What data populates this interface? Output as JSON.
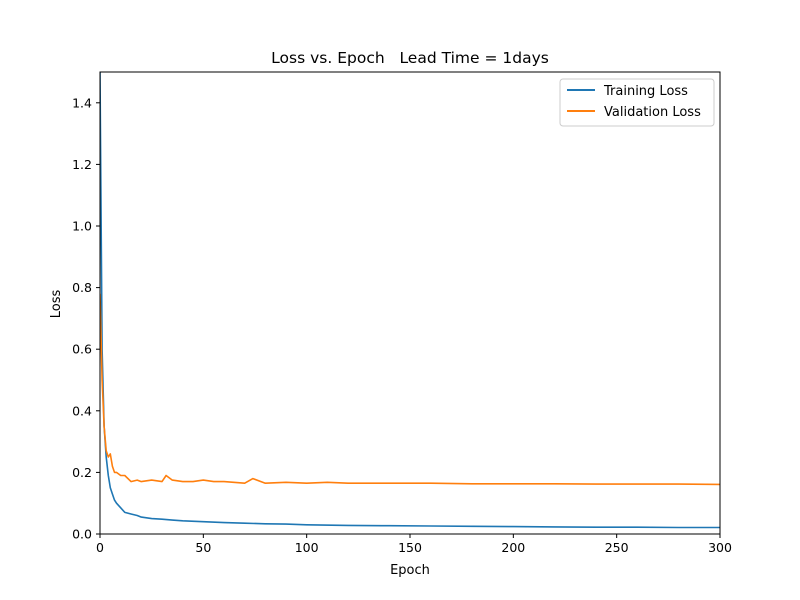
{
  "chart_data": {
    "type": "line",
    "title": "Loss vs. Epoch   Lead Time = 1days",
    "xlabel": "Epoch",
    "ylabel": "Loss",
    "xlim": [
      0,
      300
    ],
    "ylim": [
      0,
      1.5
    ],
    "xticks": [
      0,
      50,
      100,
      150,
      200,
      250,
      300
    ],
    "yticks": [
      0.0,
      0.2,
      0.4,
      0.6,
      0.8,
      1.0,
      1.2,
      1.4
    ],
    "grid": false,
    "legend_position": "top-right",
    "series": [
      {
        "name": "Training Loss",
        "color": "#1f77b4",
        "x": [
          0,
          1,
          2,
          3,
          4,
          5,
          6,
          7,
          8,
          10,
          12,
          15,
          18,
          20,
          25,
          30,
          35,
          40,
          50,
          60,
          70,
          80,
          90,
          100,
          120,
          140,
          160,
          180,
          200,
          220,
          240,
          260,
          280,
          300
        ],
        "y": [
          1.5,
          0.6,
          0.35,
          0.25,
          0.19,
          0.15,
          0.13,
          0.11,
          0.1,
          0.085,
          0.07,
          0.065,
          0.06,
          0.055,
          0.05,
          0.048,
          0.045,
          0.043,
          0.04,
          0.037,
          0.035,
          0.033,
          0.032,
          0.03,
          0.028,
          0.027,
          0.026,
          0.025,
          0.024,
          0.023,
          0.022,
          0.022,
          0.021,
          0.021
        ]
      },
      {
        "name": "Validation Loss",
        "color": "#ff7f0e",
        "x": [
          0,
          1,
          2,
          3,
          4,
          5,
          6,
          7,
          8,
          10,
          12,
          15,
          18,
          20,
          25,
          30,
          32,
          35,
          40,
          45,
          50,
          55,
          60,
          70,
          74,
          80,
          90,
          100,
          110,
          120,
          140,
          160,
          180,
          200,
          220,
          240,
          260,
          280,
          300
        ],
        "y": [
          0.78,
          0.5,
          0.35,
          0.27,
          0.25,
          0.26,
          0.22,
          0.2,
          0.2,
          0.19,
          0.19,
          0.17,
          0.175,
          0.17,
          0.175,
          0.17,
          0.19,
          0.175,
          0.17,
          0.17,
          0.175,
          0.17,
          0.17,
          0.165,
          0.18,
          0.165,
          0.168,
          0.165,
          0.168,
          0.165,
          0.165,
          0.165,
          0.163,
          0.163,
          0.163,
          0.162,
          0.162,
          0.162,
          0.161
        ]
      }
    ]
  }
}
